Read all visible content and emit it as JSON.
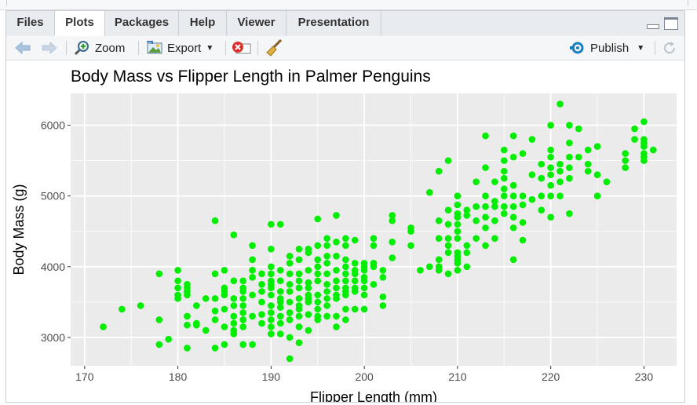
{
  "tabs": [
    {
      "label": "Files",
      "active": false
    },
    {
      "label": "Plots",
      "active": true
    },
    {
      "label": "Packages",
      "active": false
    },
    {
      "label": "Help",
      "active": false
    },
    {
      "label": "Viewer",
      "active": false
    },
    {
      "label": "Presentation",
      "active": false
    }
  ],
  "toolbar": {
    "zoom_label": "Zoom",
    "export_label": "Export",
    "publish_label": "Publish"
  },
  "icons": {
    "back": "back-arrow-icon",
    "forward": "forward-arrow-icon",
    "zoom": "zoom-icon",
    "export": "export-icon",
    "remove": "remove-plot-icon",
    "clear": "broom-icon",
    "publish": "publish-icon",
    "refresh": "refresh-icon"
  },
  "colors": {
    "point": "#00ee00",
    "panel": "#ebebeb",
    "grid": "#ffffff",
    "accent": "#1a7fc1"
  },
  "chart_data": {
    "type": "scatter",
    "title": "Body Mass vs Flipper Length in Palmer Penguins",
    "xlabel": "Flipper Length (mm)",
    "ylabel": "Body Mass (g)",
    "xlim": [
      168.5,
      233.5
    ],
    "ylim": [
      2600,
      6450
    ],
    "xticks": [
      170,
      180,
      190,
      200,
      210,
      220,
      230
    ],
    "yticks": [
      3000,
      4000,
      5000,
      6000
    ],
    "grid": true,
    "points": [
      [
        172,
        3150
      ],
      [
        174,
        3400
      ],
      [
        176,
        3450
      ],
      [
        178,
        2900
      ],
      [
        178,
        3250
      ],
      [
        178,
        3900
      ],
      [
        179,
        2975
      ],
      [
        180,
        3550
      ],
      [
        180,
        3700
      ],
      [
        180,
        3800
      ],
      [
        180,
        3950
      ],
      [
        180,
        3600
      ],
      [
        181,
        2850
      ],
      [
        181,
        3300
      ],
      [
        181,
        3600
      ],
      [
        181,
        3650
      ],
      [
        181,
        3700
      ],
      [
        181,
        3750
      ],
      [
        181,
        3175
      ],
      [
        182,
        3175
      ],
      [
        182,
        3200
      ],
      [
        182,
        3450
      ],
      [
        183,
        3100
      ],
      [
        183,
        3550
      ],
      [
        184,
        2850
      ],
      [
        184,
        3375
      ],
      [
        184,
        3550
      ],
      [
        184,
        3900
      ],
      [
        184,
        4650
      ],
      [
        184,
        3250
      ],
      [
        185,
        2900
      ],
      [
        185,
        3150
      ],
      [
        185,
        3400
      ],
      [
        185,
        3600
      ],
      [
        185,
        3650
      ],
      [
        185,
        3700
      ],
      [
        185,
        3950
      ],
      [
        186,
        3050
      ],
      [
        186,
        3100
      ],
      [
        186,
        3450
      ],
      [
        186,
        3550
      ],
      [
        186,
        3800
      ],
      [
        186,
        4450
      ],
      [
        186,
        3300
      ],
      [
        186,
        3200
      ],
      [
        187,
        2900
      ],
      [
        187,
        3150
      ],
      [
        187,
        3250
      ],
      [
        187,
        3350
      ],
      [
        187,
        3450
      ],
      [
        187,
        3650
      ],
      [
        187,
        3700
      ],
      [
        187,
        3800
      ],
      [
        187,
        3550
      ],
      [
        188,
        2900
      ],
      [
        188,
        3300
      ],
      [
        188,
        3600
      ],
      [
        188,
        3950
      ],
      [
        188,
        4100
      ],
      [
        188,
        4300
      ],
      [
        188,
        3850
      ],
      [
        189,
        3200
      ],
      [
        189,
        3325
      ],
      [
        189,
        3500
      ],
      [
        189,
        3650
      ],
      [
        189,
        3750
      ],
      [
        189,
        3900
      ],
      [
        190,
        3050
      ],
      [
        190,
        3250
      ],
      [
        190,
        3350
      ],
      [
        190,
        3450
      ],
      [
        190,
        3600
      ],
      [
        190,
        3700
      ],
      [
        190,
        3750
      ],
      [
        190,
        3800
      ],
      [
        190,
        3900
      ],
      [
        190,
        4000
      ],
      [
        190,
        4250
      ],
      [
        190,
        4600
      ],
      [
        190,
        3150
      ],
      [
        191,
        3050
      ],
      [
        191,
        3200
      ],
      [
        191,
        3300
      ],
      [
        191,
        3425
      ],
      [
        191,
        3650
      ],
      [
        191,
        3800
      ],
      [
        191,
        3950
      ],
      [
        191,
        4600
      ],
      [
        191,
        3500
      ],
      [
        191,
        3550
      ],
      [
        192,
        2700
      ],
      [
        192,
        3000
      ],
      [
        192,
        3250
      ],
      [
        192,
        3350
      ],
      [
        192,
        3500
      ],
      [
        192,
        3650
      ],
      [
        192,
        3750
      ],
      [
        192,
        3900
      ],
      [
        192,
        4050
      ],
      [
        192,
        4150
      ],
      [
        193,
        2925
      ],
      [
        193,
        3150
      ],
      [
        193,
        3300
      ],
      [
        193,
        3400
      ],
      [
        193,
        3550
      ],
      [
        193,
        3700
      ],
      [
        193,
        3800
      ],
      [
        193,
        3900
      ],
      [
        193,
        4100
      ],
      [
        193,
        4250
      ],
      [
        193,
        3450
      ],
      [
        194,
        3100
      ],
      [
        194,
        3325
      ],
      [
        194,
        3500
      ],
      [
        194,
        3550
      ],
      [
        194,
        3700
      ],
      [
        194,
        3775
      ],
      [
        194,
        3950
      ],
      [
        194,
        4200
      ],
      [
        194,
        4250
      ],
      [
        194,
        3600
      ],
      [
        195,
        3250
      ],
      [
        195,
        3400
      ],
      [
        195,
        3500
      ],
      [
        195,
        3600
      ],
      [
        195,
        3800
      ],
      [
        195,
        3900
      ],
      [
        195,
        4000
      ],
      [
        195,
        4100
      ],
      [
        195,
        4300
      ],
      [
        195,
        4675
      ],
      [
        195,
        3300
      ],
      [
        196,
        3300
      ],
      [
        196,
        3550
      ],
      [
        196,
        3650
      ],
      [
        196,
        3750
      ],
      [
        196,
        3900
      ],
      [
        196,
        4050
      ],
      [
        196,
        4150
      ],
      [
        196,
        4300
      ],
      [
        196,
        4400
      ],
      [
        196,
        3450
      ],
      [
        197,
        3150
      ],
      [
        197,
        3300
      ],
      [
        197,
        3550
      ],
      [
        197,
        3800
      ],
      [
        197,
        3950
      ],
      [
        197,
        4150
      ],
      [
        197,
        4350
      ],
      [
        197,
        4725
      ],
      [
        197,
        3600
      ],
      [
        197,
        3700
      ],
      [
        198,
        3250
      ],
      [
        198,
        3400
      ],
      [
        198,
        3600
      ],
      [
        198,
        3650
      ],
      [
        198,
        3700
      ],
      [
        198,
        3800
      ],
      [
        198,
        4000
      ],
      [
        198,
        4100
      ],
      [
        198,
        4300
      ],
      [
        198,
        4400
      ],
      [
        198,
        3900
      ],
      [
        199,
        3400
      ],
      [
        199,
        3650
      ],
      [
        199,
        3700
      ],
      [
        199,
        3800
      ],
      [
        199,
        3900
      ],
      [
        199,
        3950
      ],
      [
        199,
        4050
      ],
      [
        199,
        4375
      ],
      [
        200,
        3400
      ],
      [
        200,
        3600
      ],
      [
        200,
        3700
      ],
      [
        200,
        3800
      ],
      [
        200,
        3950
      ],
      [
        200,
        4000
      ],
      [
        200,
        4050
      ],
      [
        200,
        3850
      ],
      [
        201,
        3750
      ],
      [
        201,
        4000
      ],
      [
        201,
        4050
      ],
      [
        201,
        4300
      ],
      [
        201,
        4400
      ],
      [
        202,
        3450
      ],
      [
        202,
        3575
      ],
      [
        202,
        3850
      ],
      [
        202,
        3950
      ],
      [
        203,
        4125
      ],
      [
        203,
        4350
      ],
      [
        203,
        4650
      ],
      [
        203,
        4725
      ],
      [
        205,
        4300
      ],
      [
        205,
        4500
      ],
      [
        205,
        4550
      ],
      [
        206,
        3950
      ],
      [
        207,
        4000
      ],
      [
        207,
        5050
      ],
      [
        208,
        3950
      ],
      [
        208,
        4000
      ],
      [
        208,
        4100
      ],
      [
        208,
        4400
      ],
      [
        208,
        4650
      ],
      [
        208,
        5350
      ],
      [
        209,
        3900
      ],
      [
        209,
        4200
      ],
      [
        209,
        4300
      ],
      [
        209,
        4400
      ],
      [
        209,
        4600
      ],
      [
        209,
        4800
      ],
      [
        209,
        5500
      ],
      [
        210,
        3950
      ],
      [
        210,
        4100
      ],
      [
        210,
        4200
      ],
      [
        210,
        4400
      ],
      [
        210,
        4600
      ],
      [
        210,
        4700
      ],
      [
        210,
        4750
      ],
      [
        210,
        4875
      ],
      [
        210,
        5000
      ],
      [
        210,
        4050
      ],
      [
        210,
        4150
      ],
      [
        210,
        4500
      ],
      [
        211,
        4000
      ],
      [
        211,
        4200
      ],
      [
        211,
        4300
      ],
      [
        211,
        4725
      ],
      [
        211,
        4800
      ],
      [
        212,
        4400
      ],
      [
        212,
        4650
      ],
      [
        212,
        4850
      ],
      [
        212,
        5200
      ],
      [
        213,
        4300
      ],
      [
        213,
        4550
      ],
      [
        213,
        4700
      ],
      [
        213,
        4850
      ],
      [
        213,
        5000
      ],
      [
        213,
        5400
      ],
      [
        213,
        5850
      ],
      [
        214,
        4400
      ],
      [
        214,
        4650
      ],
      [
        214,
        4850
      ],
      [
        214,
        4925
      ],
      [
        214,
        5200
      ],
      [
        215,
        4750
      ],
      [
        215,
        4850
      ],
      [
        215,
        5000
      ],
      [
        215,
        5100
      ],
      [
        215,
        5250
      ],
      [
        215,
        5350
      ],
      [
        215,
        5500
      ],
      [
        215,
        5650
      ],
      [
        216,
        4100
      ],
      [
        216,
        4550
      ],
      [
        216,
        4700
      ],
      [
        216,
        4850
      ],
      [
        216,
        5000
      ],
      [
        216,
        5150
      ],
      [
        216,
        5550
      ],
      [
        216,
        5850
      ],
      [
        217,
        4375
      ],
      [
        217,
        4625
      ],
      [
        217,
        4875
      ],
      [
        217,
        5000
      ],
      [
        217,
        5600
      ],
      [
        218,
        4950
      ],
      [
        218,
        5300
      ],
      [
        218,
        5800
      ],
      [
        219,
        4800
      ],
      [
        219,
        5000
      ],
      [
        219,
        5250
      ],
      [
        219,
        5450
      ],
      [
        220,
        4700
      ],
      [
        220,
        5000
      ],
      [
        220,
        5150
      ],
      [
        220,
        5300
      ],
      [
        220,
        5400
      ],
      [
        220,
        5550
      ],
      [
        220,
        5650
      ],
      [
        220,
        6000
      ],
      [
        221,
        5000
      ],
      [
        221,
        5200
      ],
      [
        221,
        5350
      ],
      [
        221,
        5450
      ],
      [
        221,
        6300
      ],
      [
        222,
        4750
      ],
      [
        222,
        5250
      ],
      [
        222,
        5400
      ],
      [
        222,
        5550
      ],
      [
        222,
        5750
      ],
      [
        222,
        6000
      ],
      [
        223,
        5550
      ],
      [
        223,
        5950
      ],
      [
        224,
        5350
      ],
      [
        224,
        5450
      ],
      [
        224,
        5650
      ],
      [
        225,
        5000
      ],
      [
        225,
        5300
      ],
      [
        225,
        5700
      ],
      [
        226,
        5200
      ],
      [
        228,
        5400
      ],
      [
        228,
        5500
      ],
      [
        228,
        5600
      ],
      [
        229,
        5800
      ],
      [
        229,
        5950
      ],
      [
        230,
        5500
      ],
      [
        230,
        5600
      ],
      [
        230,
        5700
      ],
      [
        230,
        5750
      ],
      [
        230,
        5800
      ],
      [
        230,
        6050
      ],
      [
        230,
        5550
      ],
      [
        231,
        5650
      ]
    ]
  }
}
